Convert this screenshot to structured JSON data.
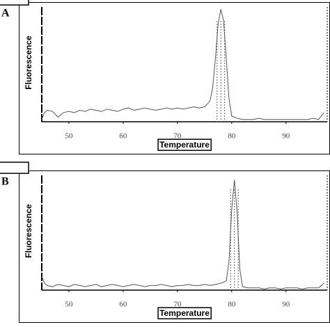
{
  "chart_data": [
    {
      "type": "line",
      "label": "A",
      "x_label": "Temperature",
      "y_label": "Fluorescence",
      "color": "#555555",
      "x": [
        45,
        45.5,
        46,
        47,
        48,
        49,
        50,
        51,
        52,
        53,
        54,
        55,
        56,
        57,
        58,
        59,
        60,
        61,
        62,
        63,
        64,
        65,
        66,
        67,
        68,
        69,
        70,
        71,
        72,
        73,
        74,
        75,
        76,
        76.5,
        77,
        77.5,
        78,
        78.5,
        79,
        79.5,
        80,
        81,
        82,
        83,
        84,
        85,
        86,
        87,
        88,
        89,
        90,
        91,
        92,
        93,
        94,
        95,
        96,
        97
      ],
      "values": [
        2,
        8,
        10,
        9,
        4,
        8,
        9,
        8,
        10,
        9,
        11,
        10,
        9,
        11,
        10,
        9,
        11,
        12,
        10,
        11,
        12,
        11,
        10,
        11,
        12,
        11,
        12,
        11,
        12,
        13,
        12,
        13,
        18,
        30,
        55,
        85,
        98,
        88,
        55,
        20,
        5,
        3,
        2,
        2,
        2,
        3,
        2,
        2,
        2,
        2,
        2,
        2,
        2,
        2,
        2,
        3,
        2,
        8
      ],
      "markers": [
        77.3,
        78,
        78.7
      ],
      "xlim": [
        45,
        97.6
      ],
      "ylim": [
        0,
        100
      ],
      "xticks": [
        50,
        60,
        70,
        80,
        90
      ]
    },
    {
      "type": "line",
      "label": "B",
      "x_label": "Temperature",
      "y_label": "Fluorescence",
      "color": "#555555",
      "x": [
        45,
        45.5,
        46,
        47,
        48,
        49,
        50,
        51,
        52,
        53,
        54,
        55,
        56,
        57,
        58,
        59,
        60,
        61,
        62,
        63,
        64,
        65,
        66,
        67,
        68,
        69,
        70,
        71,
        72,
        73,
        74,
        75,
        76,
        77,
        78,
        79,
        79.5,
        80,
        80.5,
        81,
        81.5,
        82,
        83,
        84,
        85,
        86,
        87,
        88,
        89,
        90,
        91,
        92,
        93,
        94,
        95,
        96,
        97
      ],
      "values": [
        12,
        6,
        4,
        3,
        5,
        4,
        3,
        5,
        4,
        3,
        4,
        5,
        3,
        4,
        5,
        4,
        3,
        4,
        5,
        4,
        3,
        4,
        4,
        5,
        4,
        3,
        4,
        4,
        5,
        4,
        4,
        5,
        4,
        5,
        6,
        8,
        25,
        70,
        96,
        68,
        18,
        3,
        2,
        2,
        2,
        1,
        2,
        2,
        1,
        2,
        2,
        2,
        1,
        2,
        2,
        2,
        6
      ],
      "markers": [
        79.8,
        80.5,
        81.2
      ],
      "xlim": [
        45,
        97.6
      ],
      "ylim": [
        0,
        100
      ],
      "xticks": [
        50,
        60,
        70,
        80,
        90
      ]
    }
  ]
}
